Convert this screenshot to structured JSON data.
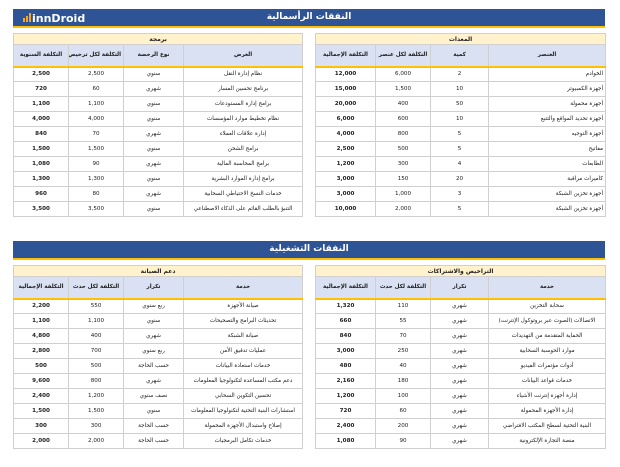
{
  "logo": "innDroid",
  "capex": {
    "title": "النفقات الرأسمالية",
    "equipment": {
      "title": "المعدات",
      "headers": [
        "العنصر",
        "كمية",
        "التكلفة لكل عنصر",
        "التكلفة الإجمالية"
      ],
      "rows": [
        [
          "الخوادم",
          "2",
          "6,000",
          "12,000"
        ],
        [
          "أجهزة الكمبيوتر",
          "10",
          "1,500",
          "15,000"
        ],
        [
          "أجهزة محمولة",
          "50",
          "400",
          "20,000"
        ],
        [
          "أجهزة تحديد المواقع والتتبع",
          "10",
          "600",
          "6,000"
        ],
        [
          "أجهزة التوجيه",
          "5",
          "800",
          "4,000"
        ],
        [
          "مفاتيح",
          "5",
          "500",
          "2,500"
        ],
        [
          "الطابعات",
          "4",
          "300",
          "1,200"
        ],
        [
          "كاميرات مراقبة",
          "20",
          "150",
          "3,000"
        ],
        [
          "أجهزة تخزين الشبكة",
          "3",
          "1,000",
          "3,000"
        ],
        [
          "أجهزة تخزين الشبكة",
          "5",
          "2,000",
          "10,000"
        ]
      ]
    },
    "software": {
      "title": "برمجة",
      "headers": [
        "الغرض",
        "نوع الرخصة",
        "التكلفة لكل ترخيص",
        "التكلفة السنوية"
      ],
      "rows": [
        [
          "نظام إدارة النقل",
          "سنوي",
          "2,500",
          "2,500"
        ],
        [
          "برنامج تحسين المسار",
          "شهري",
          "60",
          "720"
        ],
        [
          "برامج إدارة المستودعات",
          "سنوي",
          "1,100",
          "1,100"
        ],
        [
          "نظام تخطيط موارد المؤسسات",
          "سنوي",
          "4,000",
          "4,000"
        ],
        [
          "إدارة علاقات العملاء",
          "شهري",
          "70",
          "840"
        ],
        [
          "برامج الشحن",
          "سنوي",
          "1,500",
          "1,500"
        ],
        [
          "برامج المحاسبة المالية",
          "شهري",
          "90",
          "1,080"
        ],
        [
          "برامج إدارة الموارد البشرية",
          "سنوي",
          "1,300",
          "1,300"
        ],
        [
          "خدمات النسخ الاحتياطي السحابية",
          "شهري",
          "80",
          "960"
        ],
        [
          "التنبؤ بالطلب القائم على الذكاء الاصطناعي",
          "سنوي",
          "3,500",
          "3,500"
        ]
      ]
    }
  },
  "opex": {
    "title": "النفقات التشغيلية",
    "licenses": {
      "title": "التراخيص والاشتراكات",
      "headers": [
        "خدمة",
        "تكرار",
        "التكلفة لكل حدث",
        "التكلفة الإجمالية"
      ],
      "rows": [
        [
          "سحابة التخزين",
          "شهري",
          "110",
          "1,320"
        ],
        [
          "الاتصالات (الصوت عبر بروتوكول الإنترنت)",
          "شهري",
          "55",
          "660"
        ],
        [
          "الحماية المتقدمة من التهديدات",
          "شهري",
          "70",
          "840"
        ],
        [
          "موارد الحوسبة السحابية",
          "شهري",
          "250",
          "3,000"
        ],
        [
          "أدوات مؤتمرات الفيديو",
          "شهري",
          "40",
          "480"
        ],
        [
          "خدمات قواعد البيانات",
          "شهري",
          "180",
          "2,160"
        ],
        [
          "إدارة أجهزة إنترنت الأشياء",
          "شهري",
          "100",
          "1,200"
        ],
        [
          "إدارة الأجهزة المحمولة",
          "شهري",
          "60",
          "720"
        ],
        [
          "البنية التحتية لسطح المكتب الافتراضي",
          "شهري",
          "200",
          "2,400"
        ],
        [
          "منصة التجارة الإلكترونية",
          "شهري",
          "90",
          "1,080"
        ]
      ]
    },
    "maintenance": {
      "title": "دعم الصيانة",
      "headers": [
        "خدمة",
        "تكرار",
        "التكلفة لكل حدث",
        "التكلفة الإجمالية"
      ],
      "rows": [
        [
          "صيانة الأجهزة",
          "ربع سنوي",
          "550",
          "2,200"
        ],
        [
          "تحديثات البرامج والتصحيحات",
          "سنوي",
          "1,100",
          "1,100"
        ],
        [
          "صيانة الشبكة",
          "شهري",
          "400",
          "4,800"
        ],
        [
          "عمليات تدقيق الأمن",
          "ربع سنوي",
          "700",
          "2,800"
        ],
        [
          "خدمات استعادة البيانات",
          "حسب الحاجة",
          "500",
          "500"
        ],
        [
          "دعم مكتب المساعدة لتكنولوجيا المعلومات",
          "شهري",
          "800",
          "9,600"
        ],
        [
          "تحسين التكوين السحابي",
          "نصف سنوي",
          "1,200",
          "2,400"
        ],
        [
          "استشارات البنية التحتية لتكنولوجيا المعلومات",
          "سنوي",
          "1,500",
          "1,500"
        ],
        [
          "إصلاح واستبدال الأجهزة المحمولة",
          "حسب الحاجة",
          "300",
          "300"
        ],
        [
          "خدمات تكامل البرمجيات",
          "حسب الحاجة",
          "2,000",
          "2,000"
        ]
      ]
    }
  }
}
